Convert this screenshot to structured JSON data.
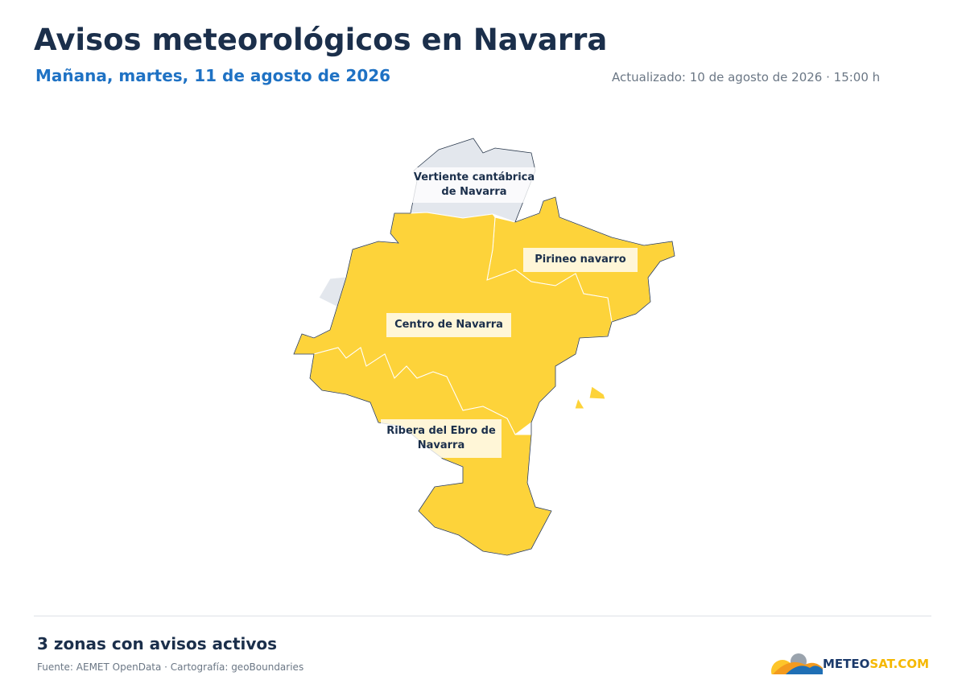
{
  "header": {
    "title": "Avisos meteorológicos en Navarra",
    "subtitle": "Mañana, martes, 11 de agosto de 2026",
    "updated": "Actualizado: 10 de agosto de 2026 · 15:00 h"
  },
  "zones": [
    {
      "label": "Vertiente cantábrica de Navarra",
      "color": "#e3e7ed"
    },
    {
      "label": "Pirineo navarro",
      "color": "#fdd33a"
    },
    {
      "label": "Centro de Navarra",
      "color": "#fdd33a"
    },
    {
      "label": "Ribera del Ebro de Navarra",
      "color": "#fdd33a"
    }
  ],
  "footer": {
    "summary": "3 zonas con avisos activos",
    "source": "Fuente: AEMET OpenData · Cartografía: geoBoundaries",
    "logo": [
      "METEO",
      "SAT.COM"
    ]
  }
}
